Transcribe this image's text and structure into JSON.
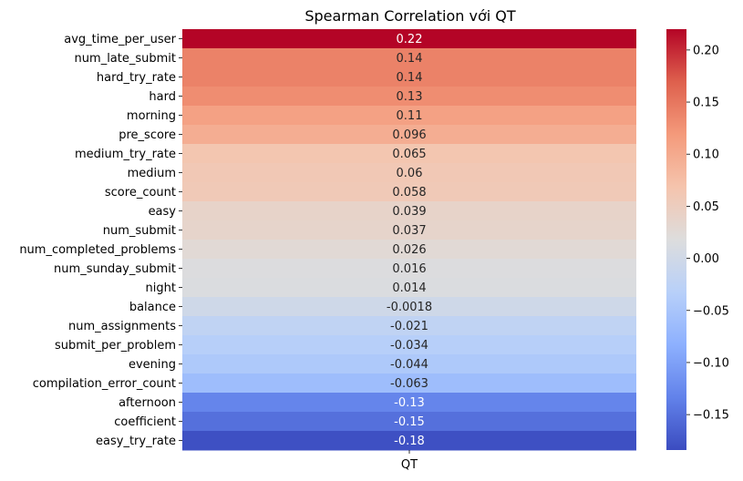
{
  "chart_data": {
    "type": "heatmap",
    "title": "Spearman Correlation với QT",
    "columns": [
      "QT"
    ],
    "rows": [
      {
        "label": "avg_time_per_user",
        "value": 0.22,
        "text": "0.22"
      },
      {
        "label": "num_late_submit",
        "value": 0.14,
        "text": "0.14"
      },
      {
        "label": "hard_try_rate",
        "value": 0.14,
        "text": "0.14"
      },
      {
        "label": "hard",
        "value": 0.13,
        "text": "0.13"
      },
      {
        "label": "morning",
        "value": 0.11,
        "text": "0.11"
      },
      {
        "label": "pre_score",
        "value": 0.096,
        "text": "0.096"
      },
      {
        "label": "medium_try_rate",
        "value": 0.065,
        "text": "0.065"
      },
      {
        "label": "medium",
        "value": 0.06,
        "text": "0.06"
      },
      {
        "label": "score_count",
        "value": 0.058,
        "text": "0.058"
      },
      {
        "label": "easy",
        "value": 0.039,
        "text": "0.039"
      },
      {
        "label": "num_submit",
        "value": 0.037,
        "text": "0.037"
      },
      {
        "label": "num_completed_problems",
        "value": 0.026,
        "text": "0.026"
      },
      {
        "label": "num_sunday_submit",
        "value": 0.016,
        "text": "0.016"
      },
      {
        "label": "night",
        "value": 0.014,
        "text": "0.014"
      },
      {
        "label": "balance",
        "value": -0.0018,
        "text": "-0.0018"
      },
      {
        "label": "num_assignments",
        "value": -0.021,
        "text": "-0.021"
      },
      {
        "label": "submit_per_problem",
        "value": -0.034,
        "text": "-0.034"
      },
      {
        "label": "evening",
        "value": -0.044,
        "text": "-0.044"
      },
      {
        "label": "compilation_error_count",
        "value": -0.063,
        "text": "-0.063"
      },
      {
        "label": "afternoon",
        "value": -0.13,
        "text": "-0.13"
      },
      {
        "label": "coefficient",
        "value": -0.15,
        "text": "-0.15"
      },
      {
        "label": "easy_try_rate",
        "value": -0.18,
        "text": "-0.18"
      }
    ],
    "colormap": "coolwarm",
    "vmin": -0.184,
    "vmax": 0.22,
    "colorbar_ticks": [
      {
        "value": 0.2,
        "label": "0.20"
      },
      {
        "value": 0.15,
        "label": "0.15"
      },
      {
        "value": 0.1,
        "label": "0.10"
      },
      {
        "value": 0.05,
        "label": "0.05"
      },
      {
        "value": 0.0,
        "label": "0.00"
      },
      {
        "value": -0.05,
        "label": "−0.05"
      },
      {
        "value": -0.1,
        "label": "−0.10"
      },
      {
        "value": -0.15,
        "label": "−0.15"
      }
    ],
    "legend": "colorbar right"
  }
}
